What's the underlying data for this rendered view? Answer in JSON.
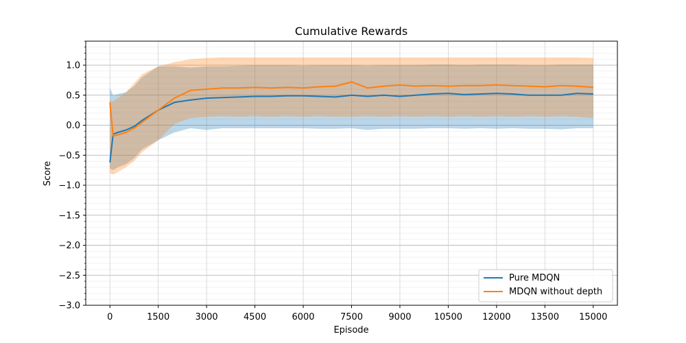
{
  "chart_data": {
    "type": "line",
    "title": "Cumulative Rewards",
    "xlabel": "Episode",
    "ylabel": "Score",
    "xlim": [
      -750,
      15750
    ],
    "ylim": [
      -3.0,
      1.4
    ],
    "xticks": [
      0,
      1500,
      3000,
      4500,
      6000,
      7500,
      9000,
      10500,
      12000,
      13500,
      15000
    ],
    "xtick_labels": [
      "0",
      "1500",
      "3000",
      "4500",
      "6000",
      "7500",
      "9000",
      "10500",
      "12000",
      "13500",
      "15000"
    ],
    "yticks": [
      -3.0,
      -2.5,
      -2.0,
      -1.5,
      -1.0,
      -0.5,
      0.0,
      0.5,
      1.0
    ],
    "ytick_labels": [
      "−3.0",
      "−2.5",
      "−2.0",
      "−1.5",
      "−1.0",
      "−0.5",
      "0.0",
      "0.5",
      "1.0"
    ],
    "grid": true,
    "legend_position": "lower-right",
    "x": [
      0,
      100,
      250,
      500,
      750,
      1000,
      1500,
      2000,
      2500,
      3000,
      3500,
      4000,
      4500,
      5000,
      5500,
      6000,
      6500,
      7000,
      7500,
      8000,
      8500,
      9000,
      9500,
      10000,
      10500,
      11000,
      11500,
      12000,
      12500,
      13000,
      13500,
      14000,
      14500,
      15000
    ],
    "series": [
      {
        "name": "Pure MDQN",
        "color": "#1f77b4",
        "values": [
          -0.62,
          -0.15,
          -0.12,
          -0.08,
          -0.02,
          0.08,
          0.25,
          0.38,
          0.42,
          0.45,
          0.46,
          0.47,
          0.48,
          0.48,
          0.49,
          0.49,
          0.48,
          0.47,
          0.5,
          0.48,
          0.5,
          0.48,
          0.5,
          0.52,
          0.53,
          0.51,
          0.52,
          0.53,
          0.52,
          0.5,
          0.5,
          0.5,
          0.53,
          0.52
        ],
        "lower": [
          -0.72,
          -0.75,
          -0.7,
          -0.65,
          -0.55,
          -0.4,
          -0.25,
          -0.12,
          -0.05,
          -0.08,
          -0.05,
          -0.05,
          -0.05,
          -0.05,
          -0.05,
          -0.05,
          -0.06,
          -0.06,
          -0.05,
          -0.08,
          -0.06,
          -0.06,
          -0.06,
          -0.05,
          -0.05,
          -0.06,
          -0.05,
          -0.06,
          -0.05,
          -0.06,
          -0.06,
          -0.07,
          -0.05,
          -0.05
        ],
        "upper": [
          0.62,
          0.5,
          0.52,
          0.55,
          0.65,
          0.8,
          0.98,
          0.98,
          0.96,
          0.98,
          0.98,
          0.99,
          1.0,
          1.0,
          1.0,
          0.99,
          1.0,
          1.0,
          1.0,
          0.99,
          1.0,
          1.0,
          1.0,
          1.01,
          1.01,
          1.0,
          1.01,
          1.01,
          1.01,
          1.0,
          1.0,
          1.01,
          1.01,
          1.01
        ]
      },
      {
        "name": "MDQN without depth",
        "color": "#ff7f0e",
        "values": [
          0.38,
          -0.18,
          -0.16,
          -0.12,
          -0.05,
          0.05,
          0.25,
          0.45,
          0.58,
          0.6,
          0.62,
          0.62,
          0.63,
          0.62,
          0.63,
          0.62,
          0.64,
          0.65,
          0.72,
          0.62,
          0.65,
          0.67,
          0.65,
          0.66,
          0.65,
          0.66,
          0.66,
          0.67,
          0.66,
          0.65,
          0.64,
          0.66,
          0.65,
          0.63
        ],
        "lower": [
          -0.8,
          -0.82,
          -0.78,
          -0.7,
          -0.6,
          -0.45,
          -0.25,
          0.02,
          0.12,
          0.14,
          0.15,
          0.14,
          0.15,
          0.14,
          0.15,
          0.14,
          0.15,
          0.14,
          0.14,
          0.15,
          0.14,
          0.15,
          0.14,
          0.15,
          0.14,
          0.15,
          0.14,
          0.15,
          0.14,
          0.15,
          0.14,
          0.15,
          0.14,
          0.12
        ],
        "upper": [
          0.4,
          0.4,
          0.45,
          0.55,
          0.7,
          0.85,
          0.98,
          1.05,
          1.1,
          1.12,
          1.13,
          1.13,
          1.13,
          1.13,
          1.13,
          1.13,
          1.13,
          1.13,
          1.13,
          1.13,
          1.13,
          1.13,
          1.13,
          1.13,
          1.13,
          1.13,
          1.13,
          1.13,
          1.13,
          1.13,
          1.13,
          1.13,
          1.13,
          1.12
        ]
      }
    ]
  }
}
